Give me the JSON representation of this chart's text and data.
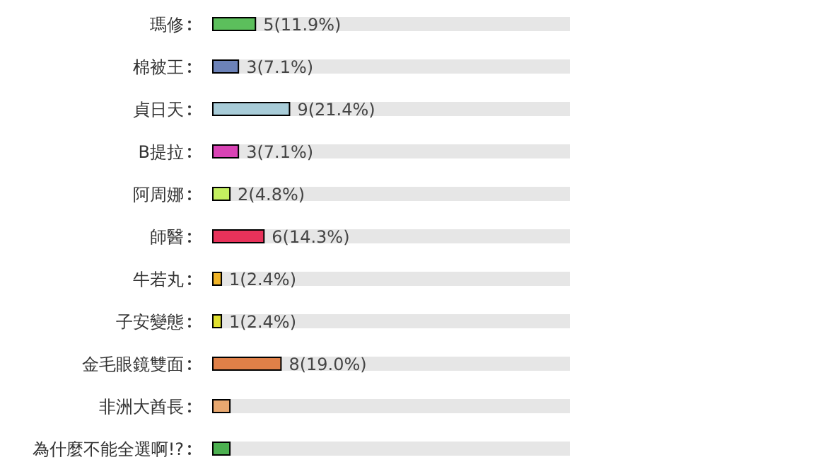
{
  "chart_data": {
    "type": "bar",
    "orientation": "horizontal",
    "categories": [
      "瑪修",
      "棉被王",
      "貞日天",
      "B提拉",
      "阿周娜",
      "師醫",
      "牛若丸",
      "子安變態",
      "金毛眼鏡雙面",
      "非洲大酋長",
      "為什麼不能全選啊!?"
    ],
    "values": [
      5,
      3,
      9,
      3,
      2,
      6,
      1,
      1,
      8,
      2,
      2
    ],
    "colors": [
      "#5cbf5c",
      "#6c82b8",
      "#a8ccd8",
      "#d943b5",
      "#c4f060",
      "#e8325a",
      "#f0b428",
      "#e0e030",
      "#e08048",
      "#e8a870",
      "#4cb050"
    ],
    "value_labels": [
      "5(11.9%)",
      "3(7.1%)",
      "9(21.4%)",
      "3(7.1%)",
      "2(4.8%)",
      "6(14.3%)",
      "1(2.4%)",
      "1(2.4%)",
      "8(19.0%)",
      null,
      null
    ]
  }
}
